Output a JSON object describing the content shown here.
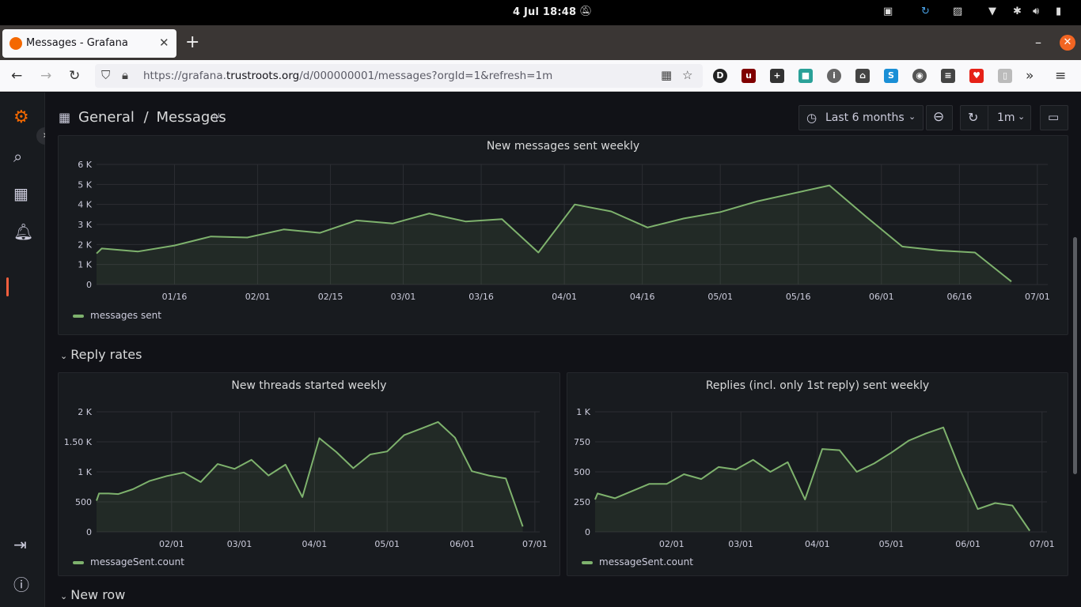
{
  "os": {
    "clock": "4 Jul  18:48"
  },
  "browser": {
    "tab_title": "Messages - Grafana",
    "url_prefix": "https://grafana.",
    "url_domain": "trustroots.org",
    "url_path": "/d/000000001/messages?orgId=1&refresh=1m"
  },
  "header": {
    "breadcrumb_parent": "General",
    "breadcrumb_sep": "/",
    "breadcrumb_title": "Messages",
    "time_range": "Last 6 months",
    "refresh_interval": "1m"
  },
  "rows": {
    "reply_rates": "Reply rates",
    "new_row": "New row"
  },
  "colors": {
    "series": "#7eb26d",
    "brand": "#f46800"
  },
  "panels": [
    {
      "title": "New messages sent weekly",
      "legend": "messages sent",
      "chart_data": {
        "type": "area",
        "ylim": [
          0,
          6000
        ],
        "yticks": [
          {
            "v": 0,
            "l": "0"
          },
          {
            "v": 1000,
            "l": "1 K"
          },
          {
            "v": 2000,
            "l": "2 K"
          },
          {
            "v": 3000,
            "l": "3 K"
          },
          {
            "v": 4000,
            "l": "4 K"
          },
          {
            "v": 5000,
            "l": "5 K"
          },
          {
            "v": 6000,
            "l": "6 K"
          }
        ],
        "xlim": [
          0,
          183
        ],
        "xticks": [
          {
            "v": 15,
            "l": "01/16"
          },
          {
            "v": 31,
            "l": "02/01"
          },
          {
            "v": 45,
            "l": "02/15"
          },
          {
            "v": 59,
            "l": "03/01"
          },
          {
            "v": 74,
            "l": "03/16"
          },
          {
            "v": 90,
            "l": "04/01"
          },
          {
            "v": 105,
            "l": "04/16"
          },
          {
            "v": 120,
            "l": "05/01"
          },
          {
            "v": 135,
            "l": "05/16"
          },
          {
            "v": 151,
            "l": "06/01"
          },
          {
            "v": 166,
            "l": "06/16"
          },
          {
            "v": 181,
            "l": "07/01"
          }
        ],
        "series": [
          {
            "name": "messages sent",
            "x": [
              0,
              1,
              8,
              15,
              22,
              29,
              36,
              43,
              50,
              57,
              64,
              71,
              78,
              85,
              92,
              99,
              106,
              113,
              120,
              127,
              134,
              141,
              148,
              155,
              162,
              169,
              176
            ],
            "y": [
              1550,
              1800,
              1650,
              1950,
              2400,
              2350,
              2750,
              2580,
              3200,
              3050,
              3550,
              3150,
              3270,
              1600,
              4000,
              3650,
              2850,
              3300,
              3620,
              4150,
              4550,
              4950,
              3400,
              1900,
              1700,
              1600,
              150
            ]
          }
        ]
      }
    },
    {
      "title": "New threads started weekly",
      "legend": "messageSent.count",
      "chart_data": {
        "type": "area",
        "ylim": [
          0,
          2000
        ],
        "yticks": [
          {
            "v": 0,
            "l": "0"
          },
          {
            "v": 500,
            "l": "500"
          },
          {
            "v": 1000,
            "l": "1 K"
          },
          {
            "v": 1500,
            "l": "1.50 K"
          },
          {
            "v": 2000,
            "l": "2 K"
          }
        ],
        "xlim": [
          0,
          183
        ],
        "xticks": [
          {
            "v": 31,
            "l": "02/01"
          },
          {
            "v": 59,
            "l": "03/01"
          },
          {
            "v": 90,
            "l": "04/01"
          },
          {
            "v": 120,
            "l": "05/01"
          },
          {
            "v": 151,
            "l": "06/01"
          },
          {
            "v": 181,
            "l": "07/01"
          }
        ],
        "series": [
          {
            "name": "messageSent.count",
            "x": [
              0,
              1,
              5,
              9,
              15,
              22,
              29,
              36,
              43,
              50,
              57,
              64,
              71,
              78,
              85,
              92,
              99,
              106,
              113,
              120,
              127,
              134,
              141,
              148,
              155,
              162,
              169,
              176
            ],
            "y": [
              520,
              640,
              640,
              630,
              710,
              850,
              930,
              990,
              830,
              1130,
              1050,
              1200,
              940,
              1120,
              580,
              1560,
              1330,
              1060,
              1290,
              1340,
              1610,
              1720,
              1830,
              1570,
              1010,
              940,
              890,
              90
            ]
          }
        ]
      }
    },
    {
      "title": "Replies (incl. only 1st reply) sent weekly",
      "legend": "messageSent.count",
      "chart_data": {
        "type": "area",
        "ylim": [
          0,
          1000
        ],
        "yticks": [
          {
            "v": 0,
            "l": "0"
          },
          {
            "v": 250,
            "l": "250"
          },
          {
            "v": 500,
            "l": "500"
          },
          {
            "v": 750,
            "l": "750"
          },
          {
            "v": 1000,
            "l": "1 K"
          }
        ],
        "xlim": [
          0,
          183
        ],
        "xticks": [
          {
            "v": 31,
            "l": "02/01"
          },
          {
            "v": 59,
            "l": "03/01"
          },
          {
            "v": 90,
            "l": "04/01"
          },
          {
            "v": 120,
            "l": "05/01"
          },
          {
            "v": 151,
            "l": "06/01"
          },
          {
            "v": 181,
            "l": "07/01"
          }
        ],
        "series": [
          {
            "name": "messageSent.count",
            "x": [
              0,
              1,
              8,
              15,
              22,
              29,
              36,
              43,
              50,
              57,
              64,
              71,
              78,
              85,
              92,
              99,
              106,
              113,
              120,
              127,
              134,
              141,
              148,
              155,
              162,
              169,
              176
            ],
            "y": [
              270,
              320,
              280,
              340,
              400,
              400,
              480,
              440,
              540,
              520,
              600,
              500,
              580,
              270,
              690,
              680,
              500,
              570,
              660,
              760,
              820,
              870,
              510,
              190,
              240,
              220,
              10
            ]
          }
        ]
      }
    }
  ]
}
